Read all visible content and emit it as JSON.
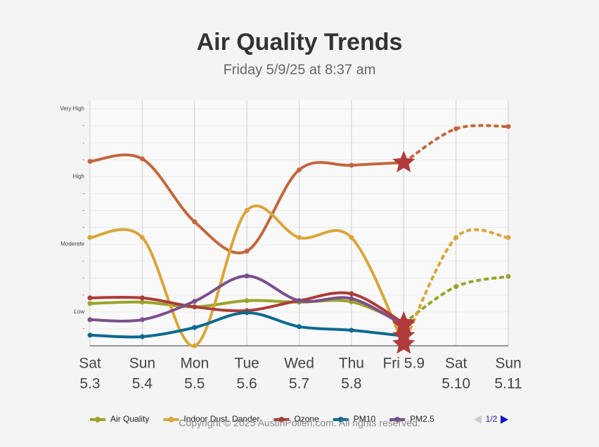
{
  "chart_data": {
    "type": "line",
    "title": "Air Quality Trends",
    "subtitle": "Friday 5/9/25 at 8:37 am",
    "categories": [
      [
        "Sat",
        "5.3"
      ],
      [
        "Sun",
        "5.4"
      ],
      [
        "Mon",
        "5.5"
      ],
      [
        "Tue",
        "5.6"
      ],
      [
        "Wed",
        "5.7"
      ],
      [
        "Thu",
        "5.8"
      ],
      [
        "Fri 5.9"
      ],
      [
        "Sat",
        "5.10"
      ],
      [
        "Sun",
        "5.11"
      ]
    ],
    "forecast_start": 6,
    "ylim": [
      0,
      14.5
    ],
    "yticks": [
      {
        "value": 1,
        "label": "-"
      },
      {
        "value": 2,
        "label": "Low"
      },
      {
        "value": 3,
        "label": "-"
      },
      {
        "value": 4,
        "label": "-"
      },
      {
        "value": 5,
        "label": "-"
      },
      {
        "value": 6,
        "label": "Moderate"
      },
      {
        "value": 7,
        "label": "-"
      },
      {
        "value": 8,
        "label": "-"
      },
      {
        "value": 9,
        "label": "-"
      },
      {
        "value": 10,
        "label": "High"
      },
      {
        "value": 11,
        "label": "-"
      },
      {
        "value": 12,
        "label": "-"
      },
      {
        "value": 13,
        "label": "-"
      },
      {
        "value": 14,
        "label": "Very High"
      }
    ],
    "grid": true,
    "series": [
      {
        "color": "#c2673c",
        "values": [
          10.9,
          11.05,
          7.33,
          5.6,
          10.4,
          10.67,
          10.83,
          12.83,
          12.96
        ]
      },
      {
        "name": "Air Quality",
        "color": "#9aa32a",
        "values": [
          2.5,
          2.58,
          2.3,
          2.67,
          2.58,
          2.6,
          1.33,
          3.5,
          4.1
        ]
      },
      {
        "name": "Indoor Dust, Dander",
        "color": "#d9a53a",
        "values": [
          6.4,
          6.4,
          0,
          8,
          6.4,
          6.4,
          0.1,
          6.4,
          6.4
        ]
      },
      {
        "name": "Ozone",
        "color": "#ac3c38",
        "values": [
          2.83,
          2.83,
          2.3,
          2.08,
          2.67,
          3.08,
          1.33,
          null,
          null
        ]
      },
      {
        "name": "PM10",
        "color": "#0b6a8e",
        "values": [
          0.63,
          0.54,
          1.08,
          1.96,
          1.13,
          0.92,
          0.58,
          null,
          null
        ]
      },
      {
        "name": "PM2.5",
        "color": "#7b4f8c",
        "values": [
          1.54,
          1.54,
          2.63,
          4.13,
          2.67,
          2.79,
          1.21,
          null,
          null
        ]
      }
    ],
    "legend_page": "1/2",
    "copyright": "Copyright © 2025 AustinPollen.com.  All rights reserved."
  }
}
